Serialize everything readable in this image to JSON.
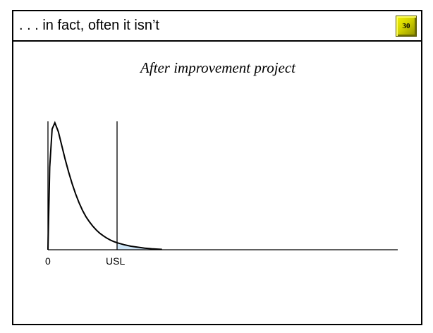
{
  "slide": {
    "title": ". . . in fact, often it isn’t",
    "page_number": "30",
    "subtitle": "After improvement project"
  },
  "chart_data": {
    "type": "line",
    "title": "After improvement project",
    "description": "Right-skewed distribution curve starting at 0 with a vertical USL marker; small tail area beyond USL shaded",
    "xlim": [
      0,
      10
    ],
    "tick_labels": [
      {
        "x": 0,
        "label": "0"
      },
      {
        "x": 2,
        "label": "USL"
      }
    ],
    "usl": 2,
    "tail_end": 3.3,
    "series": [
      {
        "name": "distribution",
        "x": [
          0,
          0.05,
          0.12,
          0.2,
          0.3,
          0.4,
          0.5,
          0.6,
          0.7,
          0.8,
          0.9,
          1.0,
          1.1,
          1.2,
          1.3,
          1.4,
          1.5,
          1.6,
          1.7,
          1.8,
          1.9,
          2.0,
          2.2,
          2.4,
          2.6,
          2.8,
          3.0,
          3.3
        ],
        "y": [
          0,
          0.65,
          0.95,
          1.0,
          0.93,
          0.82,
          0.71,
          0.61,
          0.52,
          0.44,
          0.37,
          0.31,
          0.26,
          0.22,
          0.185,
          0.155,
          0.13,
          0.11,
          0.092,
          0.077,
          0.065,
          0.055,
          0.04,
          0.028,
          0.02,
          0.013,
          0.008,
          0.003
        ]
      }
    ],
    "shade_color": "#cfe6f7"
  }
}
